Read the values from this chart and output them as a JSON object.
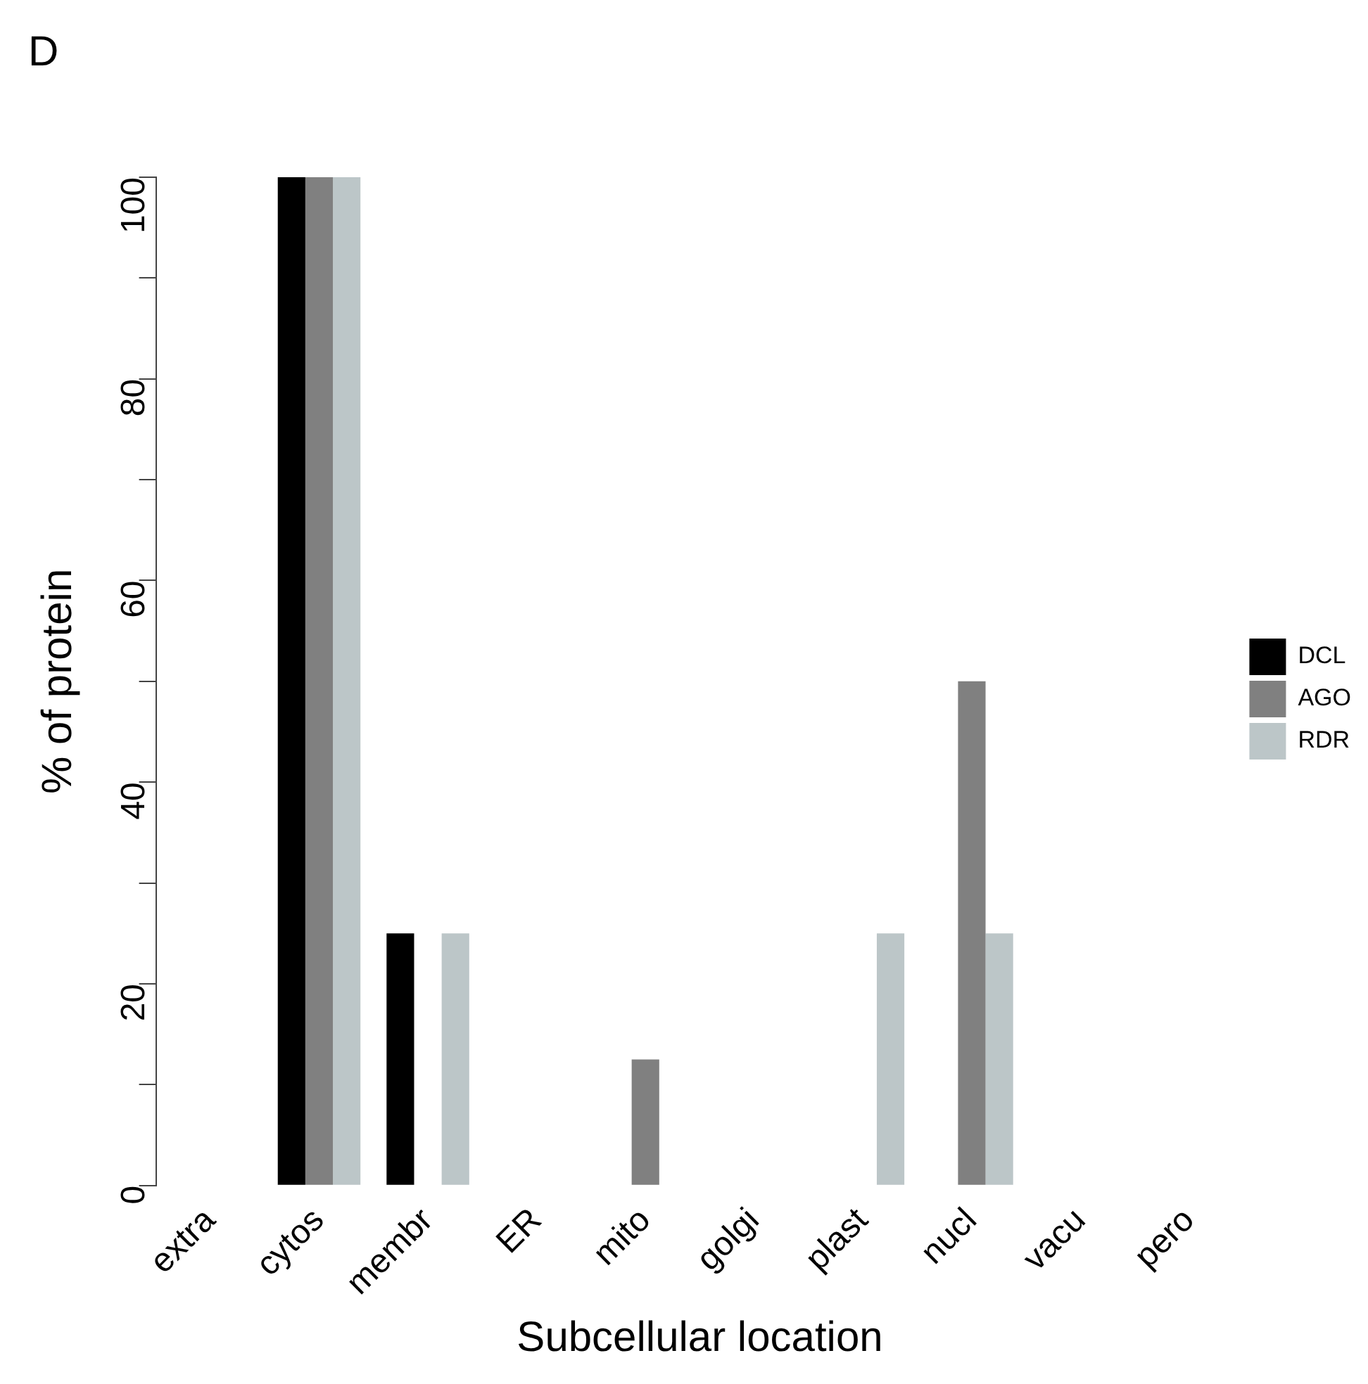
{
  "chart_data": {
    "type": "bar",
    "title": "D",
    "xlabel": "Subcellular location",
    "ylabel": "% of protein",
    "categories": [
      "extra",
      "cytos",
      "membr",
      "ER",
      "mito",
      "golgi",
      "plast",
      "nucl",
      "vacu",
      "pero"
    ],
    "series": [
      {
        "name": "DCL",
        "color": "#000000",
        "values": [
          0,
          100,
          25,
          0,
          0,
          0,
          0,
          0,
          0,
          0
        ]
      },
      {
        "name": "AGO",
        "color": "#808080",
        "values": [
          0,
          100,
          0,
          0,
          12.5,
          0,
          0,
          50,
          0,
          0
        ]
      },
      {
        "name": "RDR",
        "color": "#bcc6c8",
        "values": [
          0,
          100,
          25,
          0,
          0,
          0,
          25,
          25,
          0,
          0
        ]
      }
    ],
    "ylim": [
      0,
      100
    ],
    "yticks": [
      0,
      {
        "value": 10,
        "label": null
      },
      20,
      {
        "value": 30,
        "label": null
      },
      40,
      {
        "value": 50,
        "label": null
      },
      60,
      {
        "value": 70,
        "label": null
      },
      80,
      {
        "value": 90,
        "label": null
      },
      100
    ],
    "grid": false,
    "legend": "right"
  }
}
